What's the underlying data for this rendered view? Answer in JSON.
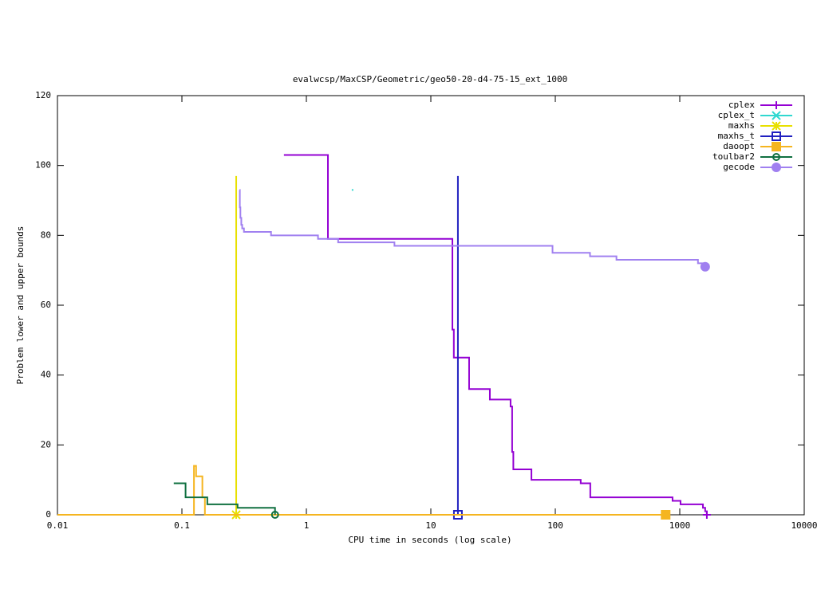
{
  "chart_data": {
    "type": "line",
    "title": "evalwcsp/MaxCSP/Geometric/geo50-20-d4-75-15_ext_1000",
    "x_label": "CPU time in seconds (log scale)",
    "y_label": "Problem lower and upper bounds",
    "xscale": "log",
    "step": true,
    "xlim": [
      0.01,
      10000
    ],
    "ylim": [
      0,
      120
    ],
    "xticks": [
      0.01,
      0.1,
      1,
      10,
      100,
      1000,
      10000
    ],
    "yticks": [
      0,
      20,
      40,
      60,
      80,
      100,
      120
    ],
    "legend": "top-right",
    "series": [
      {
        "name": "cplex",
        "color": "#9400d3",
        "marker": "plus",
        "x": [
          0.66,
          1.49,
          14.9,
          15.3,
          20.3,
          29.8,
          43.7,
          45,
          46,
          64.3,
          160,
          191,
          875,
          1014,
          1535,
          1600,
          1650
        ],
        "values": [
          103,
          79,
          53,
          45,
          36,
          33,
          31,
          18,
          13,
          10,
          9,
          5,
          4,
          3,
          2,
          1,
          0
        ]
      },
      {
        "name": "cplex_t",
        "color": "#30d8d0",
        "marker": "cross",
        "x": [
          2.35
        ],
        "values": [
          93
        ]
      },
      {
        "name": "maxhs",
        "color": "#e8e000",
        "marker": "star",
        "x": [
          0.273,
          0.273
        ],
        "values": [
          97,
          0
        ]
      },
      {
        "name": "maxhs_t",
        "color": "#2020c0",
        "marker": "square-open",
        "x": [
          16.5,
          16.5
        ],
        "values": [
          97,
          0
        ]
      },
      {
        "name": "daoopt",
        "color": "#f5b520",
        "marker": "square",
        "x": [
          0.01,
          0.125,
          0.13,
          0.146,
          0.153,
          770
        ],
        "values": [
          0,
          14,
          11,
          5,
          0,
          0
        ]
      },
      {
        "name": "toulbar2",
        "color": "#107040",
        "marker": "circle-open",
        "x": [
          0.086,
          0.107,
          0.16,
          0.28,
          0.56
        ],
        "values": [
          9,
          5,
          3,
          2,
          0
        ]
      },
      {
        "name": "gecode",
        "color": "#a080f0",
        "marker": "circle",
        "x": [
          0.29,
          0.292,
          0.295,
          0.3,
          0.305,
          0.315,
          0.52,
          1.24,
          1.8,
          5.1,
          95,
          190,
          310,
          1400,
          1600
        ],
        "values": [
          93,
          88,
          85,
          83,
          82,
          81,
          80,
          79,
          78,
          77,
          75,
          74,
          73,
          72,
          71
        ]
      }
    ]
  }
}
